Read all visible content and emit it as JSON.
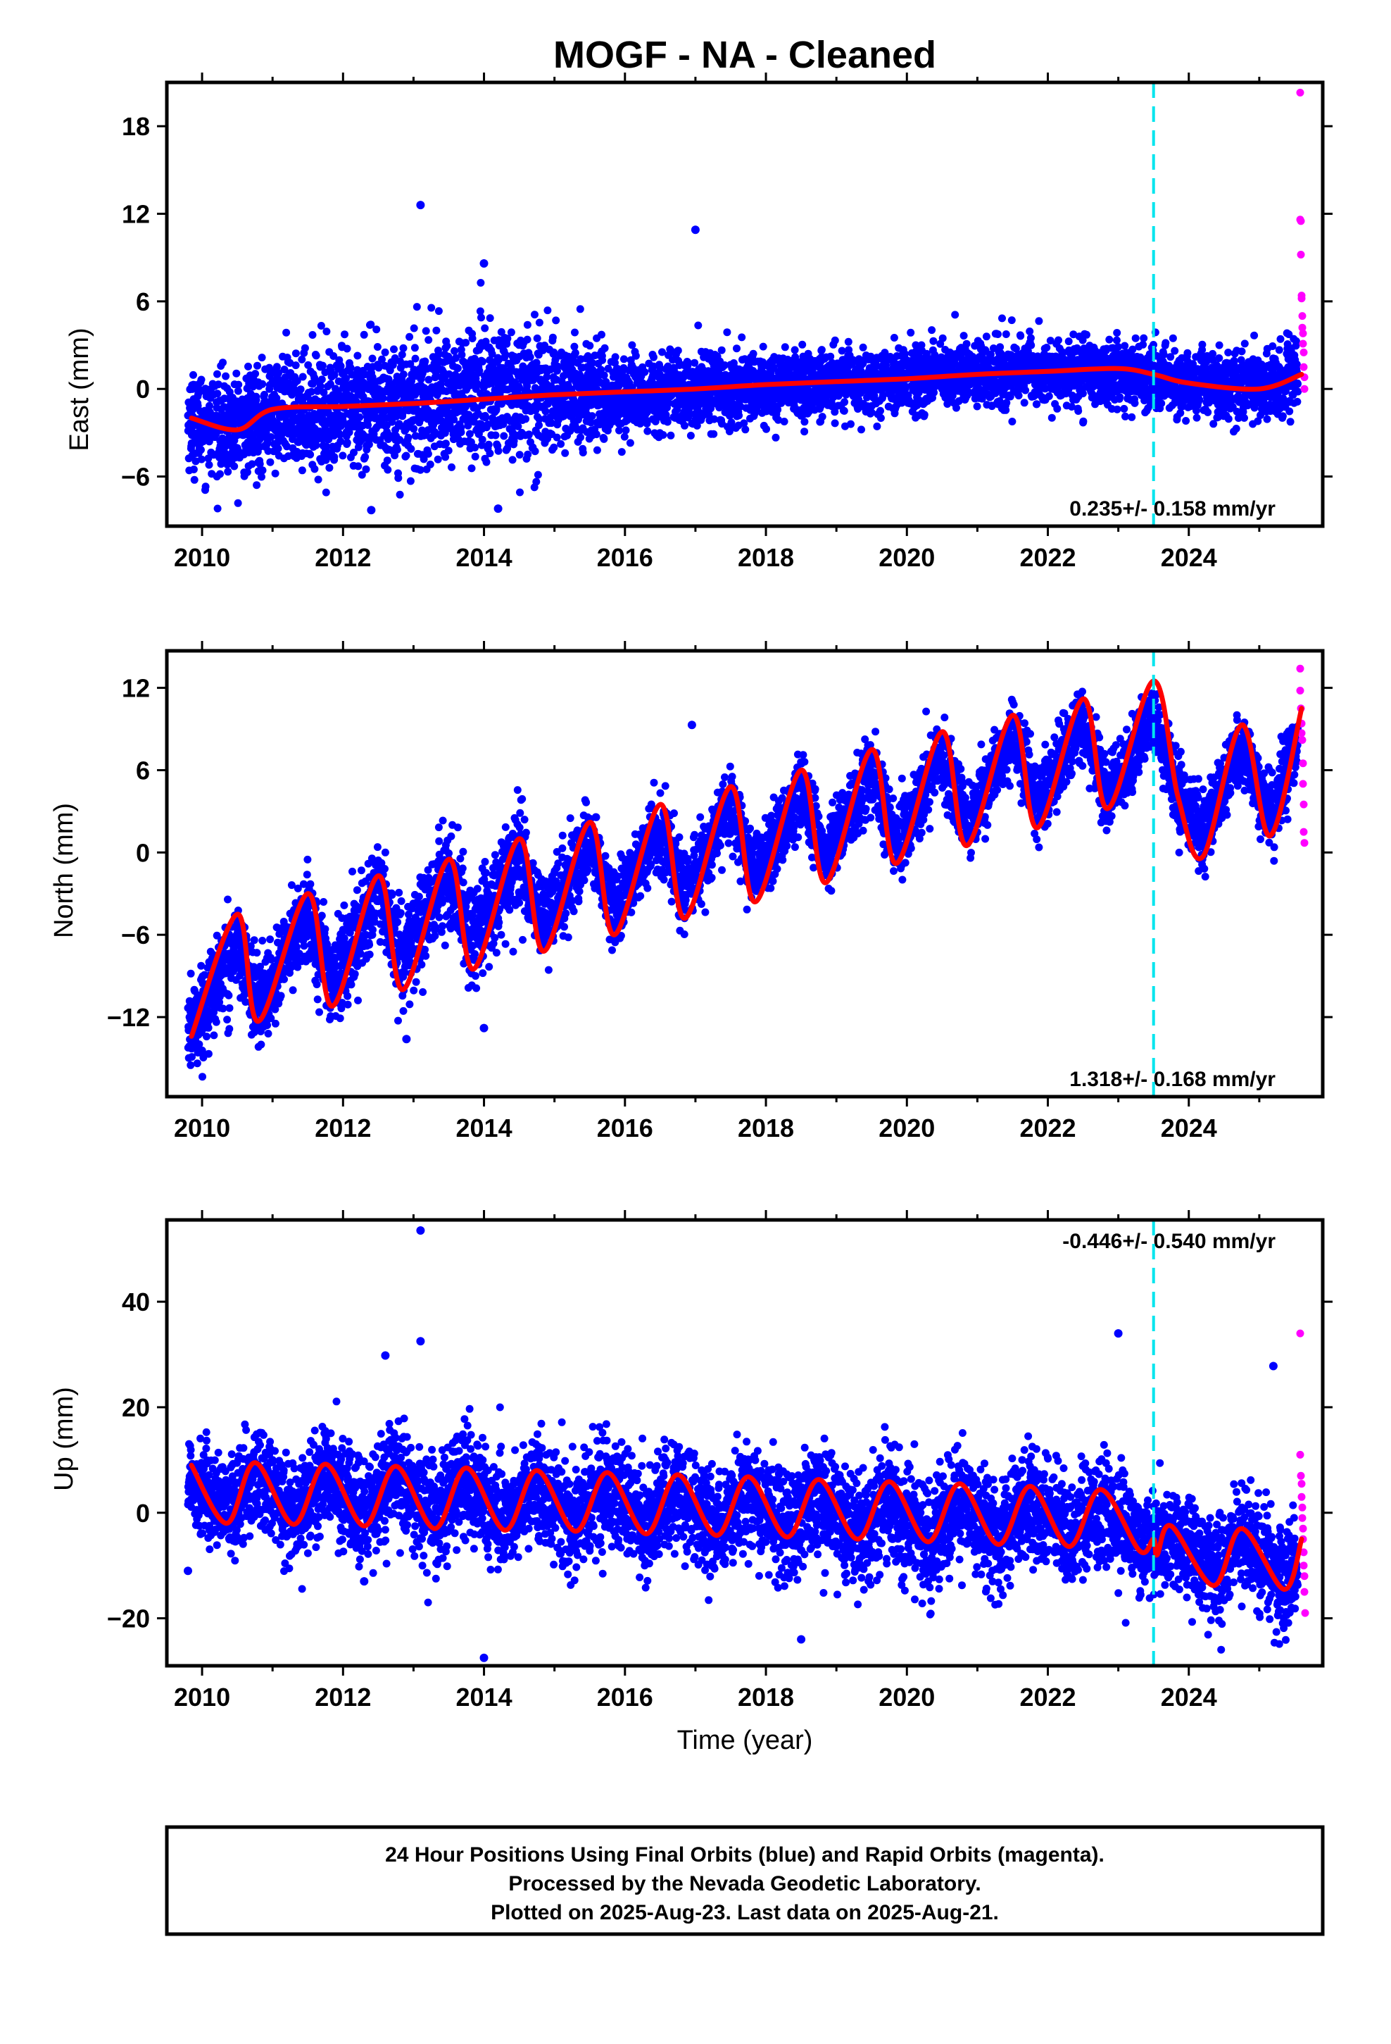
{
  "title": "MOGF  - NA - Cleaned",
  "footer": {
    "line1": "24 Hour Positions Using Final Orbits (blue) and Rapid Orbits (magenta).",
    "line2": "Processed by the Nevada Geodetic Laboratory.",
    "line3": "Plotted on 2025-Aug-23. Last data on 2025-Aug-21."
  },
  "colors": {
    "final_orbits": "#0000ff",
    "rapid_orbits": "#ff00ff",
    "model_fit": "#ff0000",
    "event_line": "#00e5ee",
    "frame": "#000000"
  },
  "chart_data": [
    {
      "type": "scatter",
      "panel": "east",
      "ylabel": "East (mm)",
      "xlabel": "",
      "xlim": [
        2009.5,
        2025.9
      ],
      "ylim": [
        -9.4,
        21
      ],
      "yticks": [
        -6,
        0,
        6,
        12,
        18
      ],
      "xticks": [
        2010,
        2012,
        2014,
        2016,
        2018,
        2020,
        2022,
        2024
      ],
      "event_line_x": 2023.5,
      "rate_label": "0.235+/- 0.158 mm/yr",
      "rate_label_position": "bottom-right",
      "model": {
        "rate_mm_per_yr": 0.235,
        "approx_points": [
          [
            2009.85,
            -2.0
          ],
          [
            2010.5,
            -2.8
          ],
          [
            2011.0,
            -1.4
          ],
          [
            2012.0,
            -1.2
          ],
          [
            2013.0,
            -1.0
          ],
          [
            2014.0,
            -0.7
          ],
          [
            2015.0,
            -0.4
          ],
          [
            2016.0,
            -0.2
          ],
          [
            2017.0,
            0.0
          ],
          [
            2018.0,
            0.3
          ],
          [
            2019.0,
            0.5
          ],
          [
            2020.0,
            0.7
          ],
          [
            2021.0,
            1.0
          ],
          [
            2022.0,
            1.2
          ],
          [
            2023.0,
            1.4
          ],
          [
            2023.5,
            1.0
          ],
          [
            2024.0,
            0.4
          ],
          [
            2025.0,
            0.0
          ],
          [
            2025.6,
            1.0
          ]
        ],
        "annual_amplitude_mm": 0.9
      },
      "final_orbits_summary": {
        "start": 2009.8,
        "end": 2025.55,
        "trend": [
          [
            2010,
            -2.5
          ],
          [
            2012,
            -1.8
          ],
          [
            2014,
            0.5
          ],
          [
            2016,
            -0.8
          ],
          [
            2018,
            0.0
          ],
          [
            2020,
            0.8
          ],
          [
            2022,
            1.2
          ],
          [
            2024,
            0.0
          ],
          [
            2025.5,
            0.5
          ]
        ],
        "scatter_sd": [
          [
            2010,
            1.6
          ],
          [
            2012,
            2.0
          ],
          [
            2014,
            2.4
          ],
          [
            2016,
            1.4
          ],
          [
            2018,
            1.1
          ],
          [
            2020,
            1.1
          ],
          [
            2022,
            1.1
          ],
          [
            2024,
            1.1
          ],
          [
            2025.5,
            1.3
          ]
        ]
      },
      "outliers": [
        [
          2013.1,
          12.6
        ],
        [
          2017.0,
          10.9
        ],
        [
          2014.0,
          8.6
        ],
        [
          2012.4,
          -8.3
        ],
        [
          2014.2,
          -8.2
        ]
      ],
      "rapid_orbits": [
        [
          2025.58,
          20.3
        ],
        [
          2025.58,
          11.6
        ],
        [
          2025.59,
          11.5
        ],
        [
          2025.59,
          9.2
        ],
        [
          2025.6,
          6.4
        ],
        [
          2025.6,
          6.2
        ],
        [
          2025.61,
          5.0
        ],
        [
          2025.61,
          4.2
        ],
        [
          2025.62,
          3.8
        ],
        [
          2025.62,
          3.1
        ],
        [
          2025.63,
          2.5
        ],
        [
          2025.63,
          1.5
        ],
        [
          2025.64,
          0.8
        ],
        [
          2025.64,
          0.0
        ]
      ]
    },
    {
      "type": "scatter",
      "panel": "north",
      "ylabel": "North (mm)",
      "xlabel": "",
      "xlim": [
        2009.5,
        2025.9
      ],
      "ylim": [
        -17.8,
        14.7
      ],
      "yticks": [
        -12,
        -6,
        0,
        6,
        12
      ],
      "xticks": [
        2010,
        2012,
        2014,
        2016,
        2018,
        2020,
        2022,
        2024
      ],
      "event_line_x": 2023.5,
      "rate_label": "1.318+/- 0.168 mm/yr",
      "rate_label_position": "bottom-right",
      "model": {
        "rate_mm_per_yr": 1.318,
        "approx_points": [
          [
            2009.85,
            -13.4
          ],
          [
            2010.5,
            -4.5
          ],
          [
            2010.8,
            -12.3
          ],
          [
            2011.5,
            -3.0
          ],
          [
            2011.85,
            -11.2
          ],
          [
            2012.5,
            -1.7
          ],
          [
            2012.85,
            -10.0
          ],
          [
            2013.5,
            -0.5
          ],
          [
            2013.85,
            -8.5
          ],
          [
            2014.5,
            1.0
          ],
          [
            2014.85,
            -7.2
          ],
          [
            2015.5,
            2.2
          ],
          [
            2015.85,
            -6.0
          ],
          [
            2016.5,
            3.5
          ],
          [
            2016.85,
            -4.8
          ],
          [
            2017.5,
            4.8
          ],
          [
            2017.85,
            -3.6
          ],
          [
            2018.5,
            6.0
          ],
          [
            2018.85,
            -2.2
          ],
          [
            2019.5,
            7.5
          ],
          [
            2019.85,
            -0.8
          ],
          [
            2020.5,
            8.8
          ],
          [
            2020.85,
            0.5
          ],
          [
            2021.5,
            10.0
          ],
          [
            2021.85,
            1.8
          ],
          [
            2022.5,
            11.2
          ],
          [
            2022.85,
            3.2
          ],
          [
            2023.5,
            12.5
          ],
          [
            2023.85,
            4.0
          ],
          [
            2024.2,
            -0.3
          ],
          [
            2024.75,
            9.3
          ],
          [
            2025.15,
            1.2
          ],
          [
            2025.6,
            10.5
          ]
        ],
        "annual_amplitude_mm": 4.3
      },
      "final_orbits_summary": {
        "start": 2009.8,
        "end": 2025.55,
        "trend": [
          [
            2010,
            -12.0
          ],
          [
            2012,
            -5.5
          ],
          [
            2014,
            -2.5
          ],
          [
            2016,
            -1.0
          ],
          [
            2018,
            1.5
          ],
          [
            2020,
            3.8
          ],
          [
            2022,
            6.8
          ],
          [
            2024,
            4.5
          ],
          [
            2025.5,
            6.0
          ]
        ],
        "scatter_sd": [
          [
            2010,
            1.6
          ],
          [
            2012,
            1.6
          ],
          [
            2014,
            1.8
          ],
          [
            2016,
            1.4
          ],
          [
            2018,
            1.3
          ],
          [
            2020,
            1.3
          ],
          [
            2022,
            1.3
          ],
          [
            2024,
            1.3
          ],
          [
            2025.5,
            1.3
          ]
        ]
      },
      "outliers": [
        [
          2016.95,
          9.3
        ],
        [
          2014.0,
          -12.8
        ],
        [
          2012.9,
          -13.6
        ]
      ],
      "rapid_orbits": [
        [
          2025.58,
          13.4
        ],
        [
          2025.58,
          11.8
        ],
        [
          2025.59,
          10.5
        ],
        [
          2025.6,
          9.4
        ],
        [
          2025.6,
          8.7
        ],
        [
          2025.61,
          8.2
        ],
        [
          2025.62,
          6.5
        ],
        [
          2025.62,
          5.0
        ],
        [
          2025.63,
          3.5
        ],
        [
          2025.63,
          1.5
        ],
        [
          2025.64,
          0.7
        ]
      ]
    },
    {
      "type": "scatter",
      "panel": "up",
      "ylabel": "Up (mm)",
      "xlabel": "Time (year)",
      "xlim": [
        2009.5,
        2025.9
      ],
      "ylim": [
        -29,
        55.5
      ],
      "yticks": [
        -20,
        0,
        20,
        40
      ],
      "xticks": [
        2010,
        2012,
        2014,
        2016,
        2018,
        2020,
        2022,
        2024
      ],
      "event_line_x": 2023.5,
      "rate_label": "-0.446+/- 0.540 mm/yr",
      "rate_label_position": "top-right",
      "model": {
        "rate_mm_per_yr": -0.446,
        "approx_points": [
          [
            2009.85,
            9.0
          ],
          [
            2010.35,
            -2.0
          ],
          [
            2010.75,
            9.5
          ],
          [
            2011.3,
            -2.2
          ],
          [
            2011.75,
            9.2
          ],
          [
            2012.3,
            -2.5
          ],
          [
            2012.75,
            8.8
          ],
          [
            2013.3,
            -3.0
          ],
          [
            2013.75,
            8.5
          ],
          [
            2014.3,
            -3.3
          ],
          [
            2014.75,
            8.0
          ],
          [
            2015.3,
            -3.5
          ],
          [
            2015.75,
            7.6
          ],
          [
            2016.3,
            -4.0
          ],
          [
            2016.75,
            7.2
          ],
          [
            2017.3,
            -4.3
          ],
          [
            2017.75,
            6.8
          ],
          [
            2018.3,
            -4.6
          ],
          [
            2018.75,
            6.3
          ],
          [
            2019.3,
            -5.0
          ],
          [
            2019.75,
            5.9
          ],
          [
            2020.3,
            -5.5
          ],
          [
            2020.75,
            5.5
          ],
          [
            2021.3,
            -6.0
          ],
          [
            2021.75,
            5.0
          ],
          [
            2022.3,
            -6.4
          ],
          [
            2022.75,
            4.4
          ],
          [
            2023.3,
            -7.2
          ],
          [
            2023.5,
            -5.0
          ],
          [
            2023.55,
            -8.0
          ],
          [
            2023.75,
            -2.5
          ],
          [
            2024.35,
            -13.8
          ],
          [
            2024.75,
            -3.0
          ],
          [
            2025.35,
            -14.5
          ],
          [
            2025.6,
            -5.0
          ]
        ],
        "annual_amplitude_mm": 6.2
      },
      "final_orbits_summary": {
        "start": 2009.8,
        "end": 2025.55,
        "trend": [
          [
            2010,
            2.5
          ],
          [
            2012,
            3.5
          ],
          [
            2014,
            2.0
          ],
          [
            2016,
            0.5
          ],
          [
            2018,
            -1.5
          ],
          [
            2020,
            -4.5
          ],
          [
            2022,
            -2.5
          ],
          [
            2024,
            -5.5
          ],
          [
            2025.5,
            -10.0
          ]
        ],
        "scatter_sd": [
          [
            2010,
            4.5
          ],
          [
            2012,
            5.0
          ],
          [
            2014,
            5.0
          ],
          [
            2016,
            5.0
          ],
          [
            2018,
            5.0
          ],
          [
            2020,
            5.5
          ],
          [
            2022,
            5.0
          ],
          [
            2024,
            4.5
          ],
          [
            2025.5,
            5.0
          ]
        ]
      },
      "outliers": [
        [
          2013.1,
          53.5
        ],
        [
          2012.6,
          29.8
        ],
        [
          2013.1,
          32.5
        ],
        [
          2023.0,
          34.0
        ],
        [
          2025.2,
          27.8
        ],
        [
          2014.0,
          -27.5
        ],
        [
          2018.5,
          -24.0
        ],
        [
          2012.3,
          -13.0
        ],
        [
          2009.8,
          -11.0
        ]
      ],
      "rapid_orbits": [
        [
          2025.58,
          34.0
        ],
        [
          2025.58,
          11.0
        ],
        [
          2025.59,
          7.0
        ],
        [
          2025.6,
          5.5
        ],
        [
          2025.6,
          3.0
        ],
        [
          2025.61,
          1.0
        ],
        [
          2025.61,
          -1.0
        ],
        [
          2025.62,
          -3.0
        ],
        [
          2025.62,
          -5.0
        ],
        [
          2025.63,
          -7.5
        ],
        [
          2025.63,
          -10.0
        ],
        [
          2025.64,
          -12.0
        ],
        [
          2025.64,
          -15.0
        ],
        [
          2025.65,
          -19.0
        ]
      ]
    }
  ]
}
